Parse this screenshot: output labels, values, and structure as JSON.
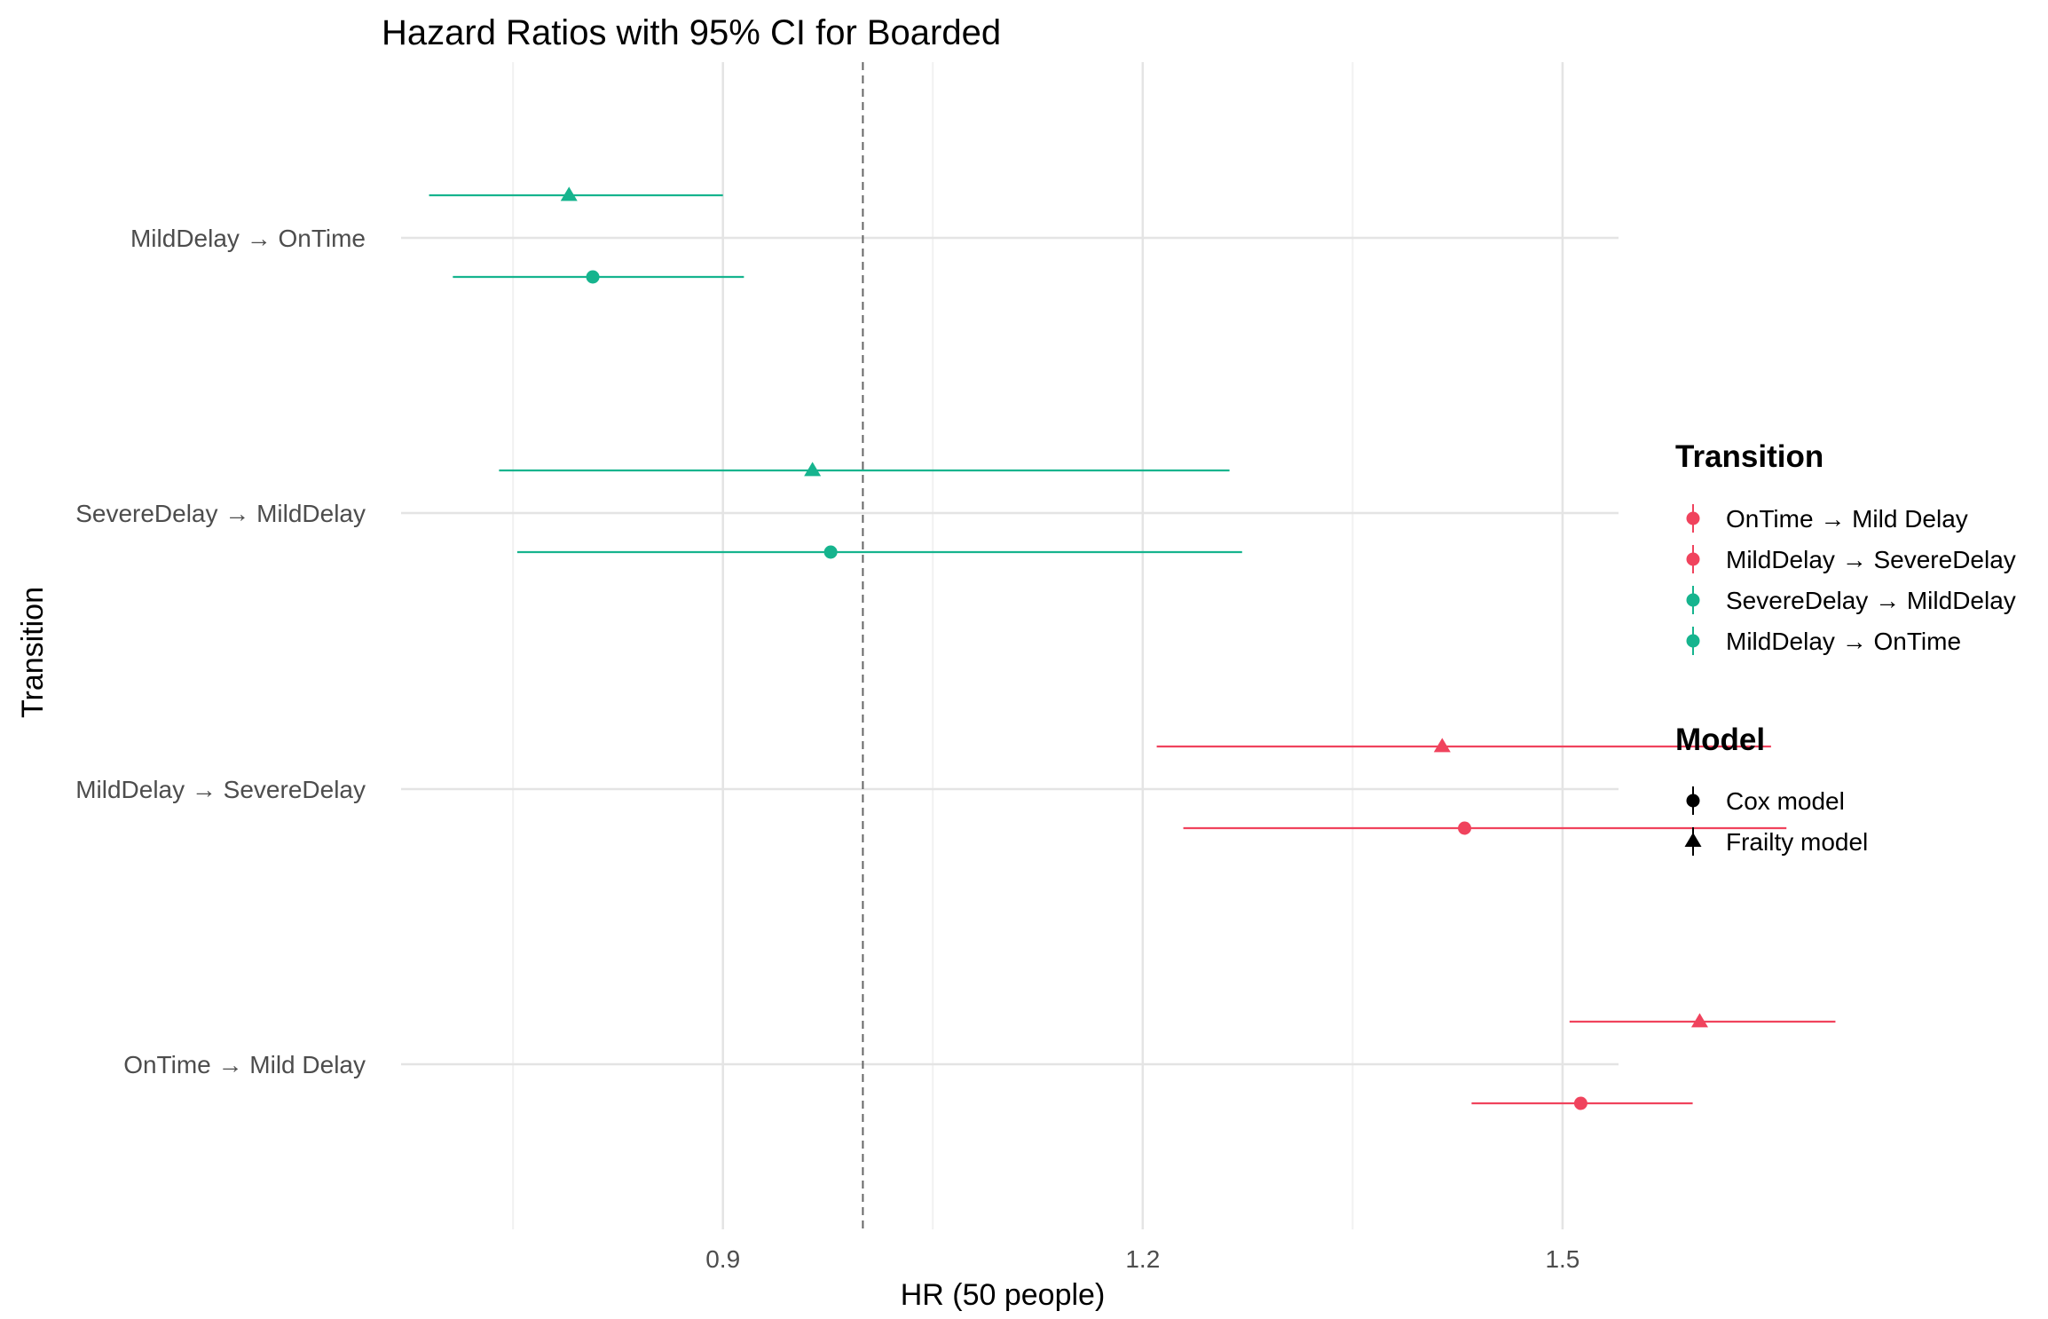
{
  "chart_data": {
    "type": "forest",
    "title": "Hazard Ratios with 95% CI for Boarded",
    "xlabel": "HR (50 people)",
    "ylabel": "Transition",
    "xlim": [
      0.67,
      1.54
    ],
    "xticks": [
      0.9,
      1.2,
      1.5
    ],
    "reference_line": 1.0,
    "categories": [
      "MildDelay → OnTime",
      "SevereDelay → MildDelay",
      "MildDelay → SevereDelay",
      "OnTime → Mild Delay"
    ],
    "colors": {
      "OnTime → Mild Delay": "#f0435d",
      "MildDelay → SevereDelay": "#f0435d",
      "SevereDelay → MildDelay": "#16b48e",
      "MildDelay → OnTime": "#16b48e"
    },
    "series": [
      {
        "name": "Frailty model",
        "shape": "triangle",
        "points": [
          {
            "category": "MildDelay → OnTime",
            "hr": 0.79,
            "lower": 0.69,
            "upper": 0.9
          },
          {
            "category": "SevereDelay → MildDelay",
            "hr": 0.964,
            "lower": 0.74,
            "upper": 1.262
          },
          {
            "category": "MildDelay → SevereDelay",
            "hr": 1.414,
            "lower": 1.21,
            "upper": 1.649
          },
          {
            "category": "OnTime → Mild Delay",
            "hr": 1.598,
            "lower": 1.505,
            "upper": 1.695
          }
        ]
      },
      {
        "name": "Cox model",
        "shape": "circle",
        "points": [
          {
            "category": "MildDelay → OnTime",
            "hr": 0.807,
            "lower": 0.707,
            "upper": 0.915
          },
          {
            "category": "SevereDelay → MildDelay",
            "hr": 0.977,
            "lower": 0.753,
            "upper": 1.271
          },
          {
            "category": "MildDelay → SevereDelay",
            "hr": 1.43,
            "lower": 1.229,
            "upper": 1.66
          },
          {
            "category": "OnTime → Mild Delay",
            "hr": 1.513,
            "lower": 1.435,
            "upper": 1.593
          }
        ]
      }
    ],
    "legend": {
      "position": "right",
      "transition_title": "Transition",
      "transition_items": [
        "OnTime → Mild Delay",
        "MildDelay → SevereDelay",
        "SevereDelay → MildDelay",
        "MildDelay → OnTime"
      ],
      "model_title": "Model",
      "model_items": [
        "Cox model",
        "Frailty model"
      ]
    },
    "grid": true
  }
}
